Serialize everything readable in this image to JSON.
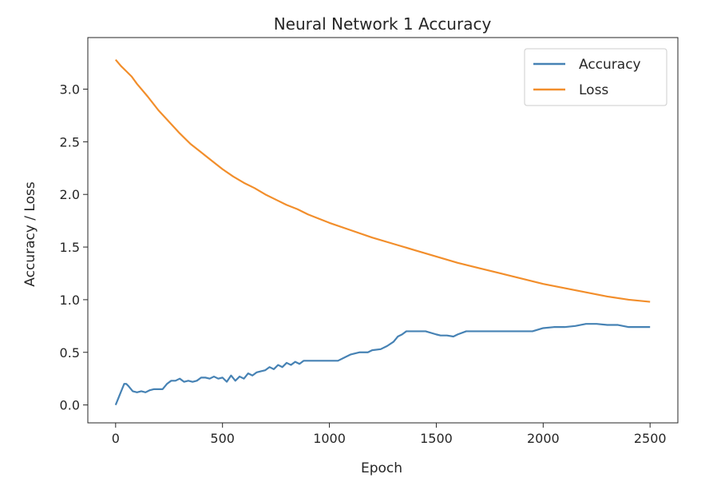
{
  "chart_data": {
    "type": "line",
    "title": "Neural Network 1 Accuracy",
    "xlabel": "Epoch",
    "ylabel": "Accuracy / Loss",
    "xlim": [
      -130,
      2630
    ],
    "ylim": [
      -0.17,
      3.49
    ],
    "xticks": [
      0,
      500,
      1000,
      1500,
      2000,
      2500
    ],
    "yticks": [
      0.0,
      0.5,
      1.0,
      1.5,
      2.0,
      2.5,
      3.0
    ],
    "xtick_labels": [
      "0",
      "500",
      "1000",
      "1500",
      "2000",
      "2500"
    ],
    "ytick_labels": [
      "0.0",
      "0.5",
      "1.0",
      "1.5",
      "2.0",
      "2.5",
      "3.0"
    ],
    "legend_position": "top-right",
    "grid": false,
    "series": [
      {
        "name": "Accuracy",
        "color": "#4682b4",
        "x": [
          0,
          10,
          20,
          30,
          40,
          50,
          60,
          80,
          100,
          120,
          140,
          160,
          180,
          200,
          220,
          240,
          260,
          280,
          300,
          320,
          340,
          360,
          380,
          400,
          420,
          440,
          460,
          480,
          500,
          520,
          540,
          560,
          580,
          600,
          620,
          640,
          660,
          680,
          700,
          720,
          740,
          760,
          780,
          800,
          820,
          840,
          860,
          880,
          900,
          920,
          960,
          1000,
          1040,
          1080,
          1100,
          1140,
          1180,
          1200,
          1240,
          1270,
          1300,
          1320,
          1340,
          1360,
          1400,
          1450,
          1500,
          1520,
          1550,
          1580,
          1600,
          1640,
          1680,
          1700,
          1750,
          1800,
          1850,
          1900,
          1950,
          2000,
          2050,
          2100,
          2150,
          2200,
          2250,
          2300,
          2350,
          2400,
          2450,
          2500
        ],
        "y": [
          0.0,
          0.05,
          0.1,
          0.15,
          0.2,
          0.2,
          0.18,
          0.13,
          0.12,
          0.13,
          0.12,
          0.14,
          0.15,
          0.15,
          0.15,
          0.2,
          0.23,
          0.23,
          0.25,
          0.22,
          0.23,
          0.22,
          0.23,
          0.26,
          0.26,
          0.25,
          0.27,
          0.25,
          0.26,
          0.22,
          0.28,
          0.23,
          0.27,
          0.25,
          0.3,
          0.28,
          0.31,
          0.32,
          0.33,
          0.36,
          0.34,
          0.38,
          0.36,
          0.4,
          0.38,
          0.41,
          0.39,
          0.42,
          0.42,
          0.42,
          0.42,
          0.42,
          0.42,
          0.46,
          0.48,
          0.5,
          0.5,
          0.52,
          0.53,
          0.56,
          0.6,
          0.65,
          0.67,
          0.7,
          0.7,
          0.7,
          0.67,
          0.66,
          0.66,
          0.65,
          0.67,
          0.7,
          0.7,
          0.7,
          0.7,
          0.7,
          0.7,
          0.7,
          0.7,
          0.73,
          0.74,
          0.74,
          0.75,
          0.77,
          0.77,
          0.76,
          0.76,
          0.74,
          0.74,
          0.74
        ]
      },
      {
        "name": "Loss",
        "color": "#f28e2b",
        "x": [
          0,
          25,
          50,
          75,
          100,
          150,
          200,
          250,
          300,
          350,
          400,
          450,
          500,
          550,
          600,
          650,
          700,
          750,
          800,
          850,
          900,
          950,
          1000,
          1100,
          1200,
          1300,
          1400,
          1500,
          1600,
          1700,
          1800,
          1900,
          2000,
          2100,
          2200,
          2300,
          2400,
          2500
        ],
        "y": [
          3.28,
          3.22,
          3.17,
          3.12,
          3.05,
          2.93,
          2.8,
          2.69,
          2.58,
          2.48,
          2.4,
          2.32,
          2.24,
          2.17,
          2.11,
          2.06,
          2.0,
          1.95,
          1.9,
          1.86,
          1.81,
          1.77,
          1.73,
          1.66,
          1.59,
          1.53,
          1.47,
          1.41,
          1.35,
          1.3,
          1.25,
          1.2,
          1.15,
          1.11,
          1.07,
          1.03,
          1.0,
          0.98
        ]
      }
    ]
  }
}
